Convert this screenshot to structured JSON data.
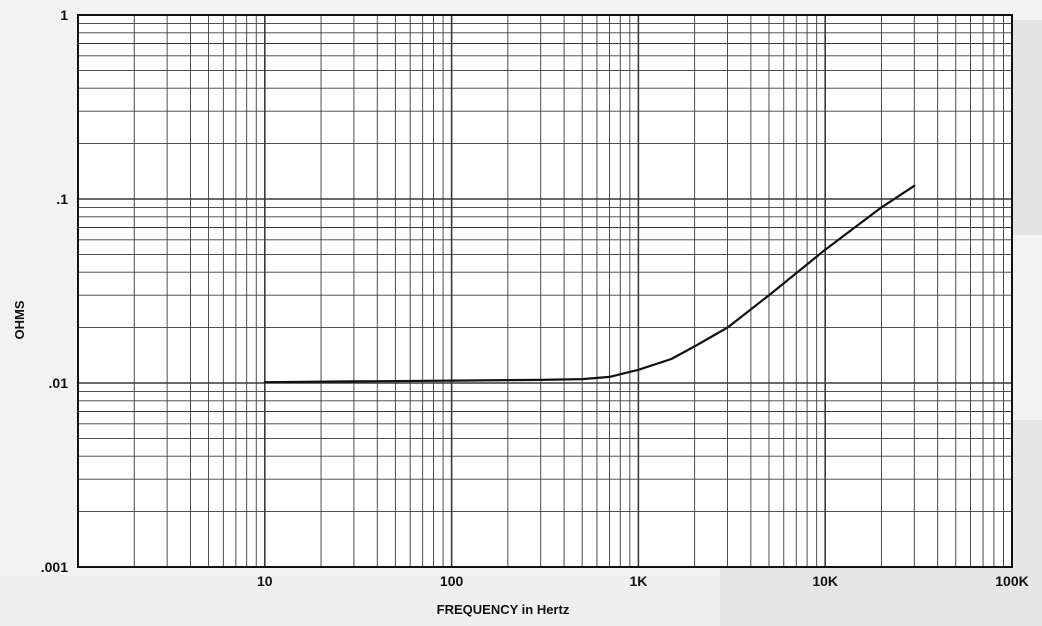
{
  "chart_data": {
    "type": "line",
    "title": "",
    "xlabel": "FREQUENCY in Hertz",
    "ylabel": "OHMS",
    "x_scale": "log",
    "y_scale": "log",
    "xlim": [
      1,
      100000
    ],
    "ylim": [
      0.001,
      1
    ],
    "grid": true,
    "x_ticks": [
      {
        "value": 10,
        "label": "10"
      },
      {
        "value": 100,
        "label": "100"
      },
      {
        "value": 1000,
        "label": "1K"
      },
      {
        "value": 10000,
        "label": "10K"
      },
      {
        "value": 100000,
        "label": "100K"
      }
    ],
    "y_ticks": [
      {
        "value": 1,
        "label": "1"
      },
      {
        "value": 0.1,
        "label": ".1"
      },
      {
        "value": 0.01,
        "label": ".01"
      },
      {
        "value": 0.001,
        "label": ".001"
      }
    ],
    "series": [
      {
        "x": [
          10,
          30,
          100,
          300,
          500,
          700,
          1000,
          1500,
          2000,
          2500,
          3000,
          5000,
          10000,
          20000,
          30000
        ],
        "y": [
          0.0101,
          0.0102,
          0.0103,
          0.0104,
          0.0105,
          0.0108,
          0.0118,
          0.0135,
          0.0158,
          0.018,
          0.02,
          0.03,
          0.053,
          0.09,
          0.118
        ]
      }
    ]
  },
  "colors": {
    "background": "#f2f2f2",
    "plot_background": "#ffffff",
    "grid": "#3a3a3a",
    "line": "#111111",
    "bleed_text": "#d6d6d6"
  }
}
